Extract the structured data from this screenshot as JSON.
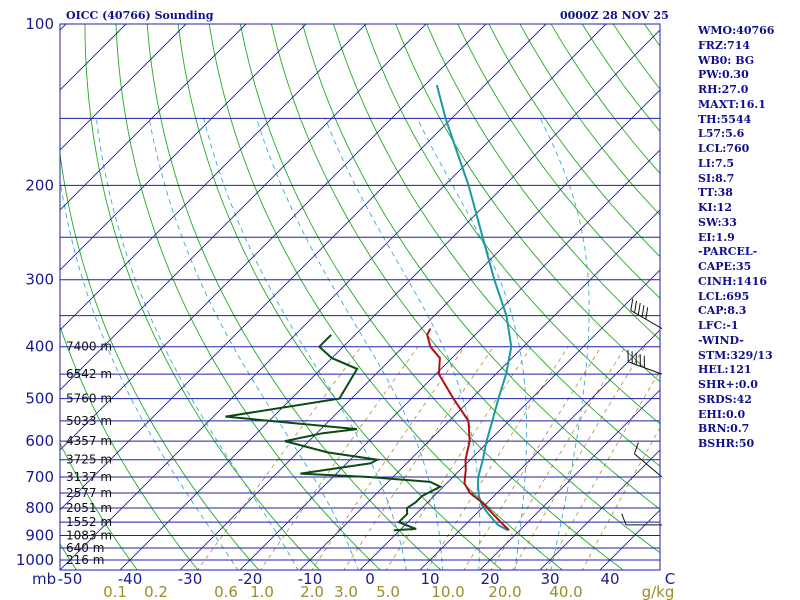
{
  "header": {
    "station": "OICC (40766) Sounding",
    "time": "0000Z 28 NOV 25"
  },
  "indices": [
    "WMO:40766",
    "FRZ:714",
    "WB0: BG",
    "PW:0.30",
    "RH:27.0",
    "MAXT:16.1",
    "TH:5544",
    "L57:5.6",
    "LCL:760",
    "LI:7.5",
    "SI:8.7",
    "TT:38",
    "KI:12",
    "SW:33",
    "EI:1.9",
    "-PARCEL-",
    "CAPE:35",
    "CINH:1416",
    "LCL:695",
    "CAP:8.3",
    "LFC:-1",
    "-WIND-",
    "STM:329/13",
    "HEL:121",
    "SHR+:0.0",
    "SRDS:42",
    "EHI:0.0",
    "BRN:0.7",
    "BSHR:50"
  ],
  "chart_data": {
    "type": "line",
    "diagram": "skew-T log-p",
    "ylim_pressure_mb": [
      1050,
      100
    ],
    "xlim_temperature_c": [
      -50,
      50
    ],
    "pressure_axis": {
      "unit": "mb",
      "tick_labels": [
        "100",
        "200",
        "300",
        "400",
        "500",
        "600",
        "700",
        "800",
        "900",
        "1000"
      ]
    },
    "temperature_axis": {
      "tick_labels": [
        "-50",
        "-40",
        "-30",
        "-20",
        "-10",
        "0",
        "10",
        "20",
        "30",
        "40",
        "C"
      ]
    },
    "mixing_ratio_axis": {
      "unit": "g/kg",
      "tick_labels": [
        "0.1",
        "0.2",
        "0.6",
        "1.0",
        "2.0",
        "3.0",
        "5.0",
        "10.0",
        "20.0",
        "40.0",
        "g/kg"
      ]
    },
    "height_labels": [
      {
        "p": 400,
        "label": "7400 m"
      },
      {
        "p": 450,
        "label": "6542 m"
      },
      {
        "p": 500,
        "label": "5760 m"
      },
      {
        "p": 550,
        "label": "5033 m"
      },
      {
        "p": 600,
        "label": "4357 m"
      },
      {
        "p": 650,
        "label": "3725 m"
      },
      {
        "p": 700,
        "label": "3137 m"
      },
      {
        "p": 750,
        "label": "2577 m"
      },
      {
        "p": 800,
        "label": "2051 m"
      },
      {
        "p": 850,
        "label": "1552 m"
      },
      {
        "p": 900,
        "label": "1083 m"
      },
      {
        "p": 950,
        "label": "640 m"
      },
      {
        "p": 1000,
        "label": "216 m"
      }
    ],
    "series": [
      {
        "name": "",
        "color": "#1a9aa0",
        "points": [
          [
            880,
            18.0
          ],
          [
            860,
            15.5
          ],
          [
            850,
            14.6
          ],
          [
            820,
            12.0
          ],
          [
            790,
            9.5
          ],
          [
            760,
            7.5
          ],
          [
            730,
            5.8
          ],
          [
            700,
            4.2
          ],
          [
            650,
            2.1
          ],
          [
            600,
            -0.4
          ],
          [
            550,
            -2.8
          ],
          [
            500,
            -5.5
          ],
          [
            450,
            -8.3
          ],
          [
            400,
            -12.0
          ],
          [
            350,
            -18.0
          ],
          [
            300,
            -26.0
          ],
          [
            250,
            -35.0
          ],
          [
            200,
            -46.0
          ],
          [
            170,
            -54.5
          ],
          [
            150,
            -61.0
          ],
          [
            130,
            -68.0
          ]
        ]
      },
      {
        "name": "",
        "color": "#b30f0f",
        "points": [
          [
            880,
            18.2
          ],
          [
            850,
            15.5
          ],
          [
            780,
            9.0
          ],
          [
            750,
            5.5
          ],
          [
            720,
            3.0
          ],
          [
            700,
            2.0
          ],
          [
            680,
            1.0
          ],
          [
            650,
            -0.8
          ],
          [
            600,
            -3.2
          ],
          [
            550,
            -6.8
          ],
          [
            500,
            -13.0
          ],
          [
            450,
            -19.5
          ],
          [
            420,
            -22.0
          ],
          [
            400,
            -25.5
          ],
          [
            380,
            -28.0
          ],
          [
            370,
            -28.5
          ]
        ]
      },
      {
        "name": "",
        "color": "#0c4a14",
        "points": [
          [
            880,
            -1.0
          ],
          [
            875,
            2.5
          ],
          [
            850,
            -1.5
          ],
          [
            820,
            -1.5
          ],
          [
            800,
            -2.5
          ],
          [
            780,
            -2.0
          ],
          [
            760,
            -2.0
          ],
          [
            730,
            -0.5
          ],
          [
            715,
            -3.0
          ],
          [
            700,
            -14.0
          ],
          [
            690,
            -26.0
          ],
          [
            660,
            -16.0
          ],
          [
            650,
            -15.5
          ],
          [
            630,
            -25.0
          ],
          [
            600,
            -34.0
          ],
          [
            580,
            -29.0
          ],
          [
            570,
            -24.0
          ],
          [
            540,
            -48.0
          ],
          [
            500,
            -32.0
          ],
          [
            440,
            -34.0
          ],
          [
            420,
            -40.0
          ],
          [
            400,
            -44.0
          ],
          [
            380,
            -44.0
          ]
        ]
      }
    ],
    "wind_barbs": [
      {
        "p": 370,
        "direction_deg": 300,
        "speed_kt": 45
      },
      {
        "p": 450,
        "direction_deg": 290,
        "speed_kt": 50
      },
      {
        "p": 700,
        "direction_deg": 310,
        "speed_kt": 5
      },
      {
        "p": 860,
        "direction_deg": 270,
        "speed_kt": 5
      }
    ],
    "colors": {
      "isobar": "#1f1fa6",
      "isotherm": "#1f1fa6",
      "dry_adiabat": "#22aa22",
      "moist_adiabat": "#3aaad0",
      "mixing_ratio": "#b08c3a"
    }
  }
}
